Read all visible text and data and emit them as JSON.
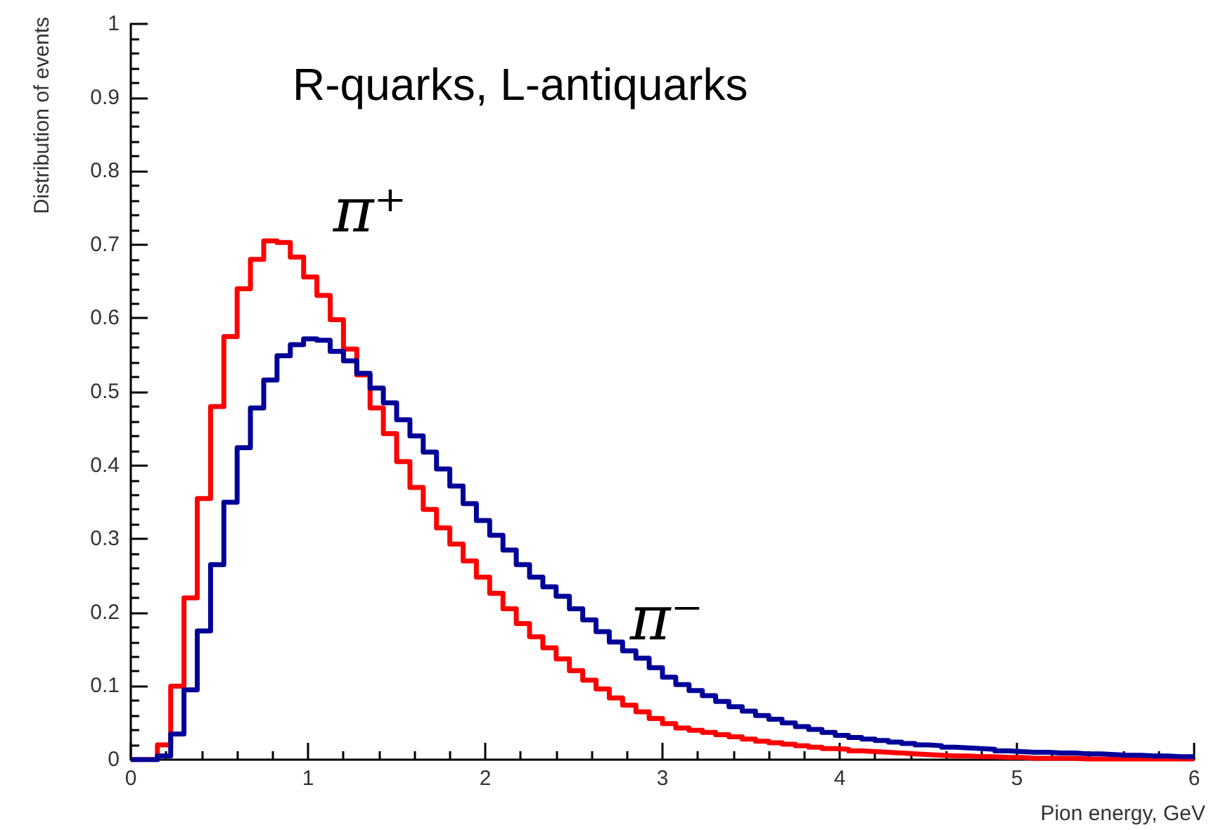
{
  "chart_data": {
    "type": "histogram",
    "title": "R-quarks, L-antiquarks",
    "xlabel": "Pion energy, GeV",
    "ylabel": "Distribution of events",
    "bins": [
      0,
      0.075,
      0.15,
      0.225,
      0.3,
      0.375,
      0.45,
      0.525,
      0.6,
      0.675,
      0.75,
      0.825,
      0.9,
      0.975,
      1.05,
      1.125,
      1.2,
      1.275,
      1.35,
      1.425,
      1.5,
      1.575,
      1.65,
      1.725,
      1.8,
      1.875,
      1.95,
      2.025,
      2.1,
      2.175,
      2.25,
      2.325,
      2.4,
      2.475,
      2.55,
      2.625,
      2.7,
      2.775,
      2.85,
      2.925,
      3,
      3.075,
      3.15,
      3.225,
      3.3,
      3.375,
      3.45,
      3.525,
      3.6,
      3.675,
      3.75,
      3.825,
      3.9,
      3.975,
      4.05,
      4.125,
      4.2,
      4.275,
      4.35,
      4.425,
      4.5,
      4.575,
      4.65,
      4.725,
      4.8,
      4.875,
      4.95,
      5.025,
      5.1,
      5.175,
      5.25,
      5.325,
      5.4,
      5.475,
      5.55,
      5.625,
      5.7,
      5.775,
      5.85,
      5.925,
      6
    ],
    "series": [
      {
        "color": "#ff0000",
        "values": [
          0,
          0,
          0.02,
          0.1,
          0.22,
          0.355,
          0.48,
          0.575,
          0.64,
          0.68,
          0.705,
          0.703,
          0.683,
          0.656,
          0.631,
          0.598,
          0.558,
          0.523,
          0.478,
          0.443,
          0.405,
          0.37,
          0.34,
          0.315,
          0.293,
          0.27,
          0.248,
          0.226,
          0.205,
          0.185,
          0.167,
          0.152,
          0.137,
          0.121,
          0.108,
          0.096,
          0.084,
          0.074,
          0.065,
          0.056,
          0.049,
          0.043,
          0.04,
          0.037,
          0.034,
          0.031,
          0.028,
          0.025,
          0.023,
          0.021,
          0.019,
          0.017,
          0.015,
          0.014,
          0.012,
          0.011,
          0.01,
          0.009,
          0.008,
          0.007,
          0.006,
          0.005,
          0.005,
          0.004,
          0.004,
          0.003,
          0.003,
          0.002,
          0.002,
          0.002,
          0.002,
          0.001,
          0.001,
          0.001,
          0.001,
          0.001,
          0.001,
          0.001,
          0.001,
          0.001
        ]
      },
      {
        "color": "#000099",
        "values": [
          0,
          0,
          0.005,
          0.035,
          0.095,
          0.175,
          0.265,
          0.35,
          0.424,
          0.478,
          0.516,
          0.549,
          0.564,
          0.572,
          0.57,
          0.555,
          0.542,
          0.525,
          0.505,
          0.485,
          0.462,
          0.44,
          0.418,
          0.395,
          0.372,
          0.348,
          0.325,
          0.305,
          0.285,
          0.265,
          0.248,
          0.235,
          0.222,
          0.205,
          0.19,
          0.174,
          0.16,
          0.148,
          0.138,
          0.125,
          0.112,
          0.102,
          0.094,
          0.087,
          0.079,
          0.072,
          0.066,
          0.06,
          0.055,
          0.05,
          0.045,
          0.041,
          0.037,
          0.033,
          0.03,
          0.028,
          0.026,
          0.024,
          0.022,
          0.02,
          0.019,
          0.017,
          0.016,
          0.015,
          0.014,
          0.012,
          0.011,
          0.01,
          0.01,
          0.009,
          0.009,
          0.008,
          0.008,
          0.007,
          0.006,
          0.006,
          0.005,
          0.005,
          0.004,
          0.004
        ]
      }
    ],
    "annotations": [
      "π⁺",
      "π⁻"
    ],
    "xlim": [
      0,
      6
    ],
    "xticks": [
      0,
      1,
      2,
      3,
      4,
      5,
      6
    ],
    "ylim": [
      0,
      1
    ],
    "yticks": [
      0,
      0.1,
      0.2,
      0.3,
      0.4,
      0.5,
      0.6,
      0.7,
      0.8,
      0.9,
      1
    ],
    "grid": false
  }
}
